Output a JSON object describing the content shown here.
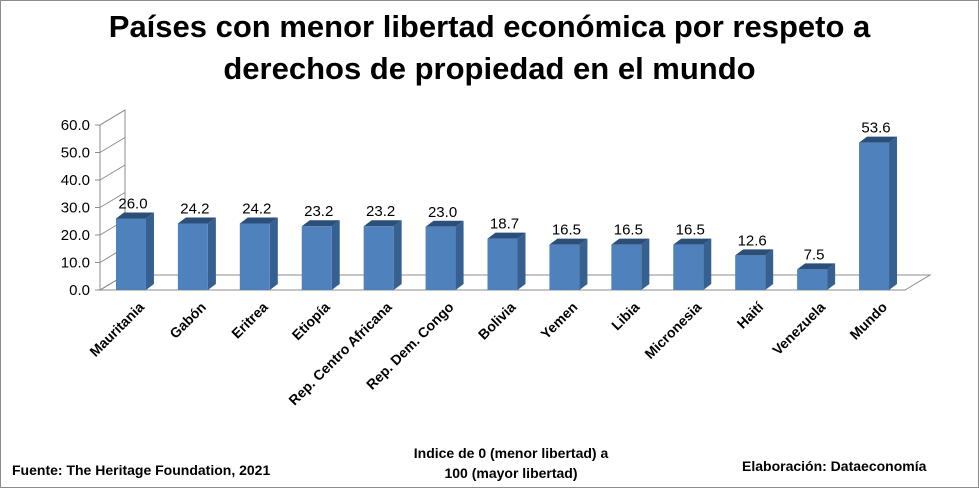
{
  "title_line1": "Países con menor libertad económica por respeto a",
  "title_line2": "derechos de propiedad en el mundo",
  "footer": {
    "source": "Fuente: The Heritage Foundation, 2021",
    "note_line1": "Indice de 0 (menor libertad) a",
    "note_line2": "100  (mayor libertad)",
    "credit": "Elaboración: Dataeconomía"
  },
  "chart_data": {
    "type": "bar",
    "categories": [
      "Mauritania",
      "Gabón",
      "Eritrea",
      "Etiopía",
      "Rep. Centro Africana",
      "Rep. Dem. Congo",
      "Bolivia",
      "Yemen",
      "Libia",
      "Micronesia",
      "Haití",
      "Venezuela",
      "Mundo"
    ],
    "values": [
      26.0,
      24.2,
      24.2,
      23.2,
      23.2,
      23.0,
      18.7,
      16.5,
      16.5,
      16.5,
      12.6,
      7.5,
      53.6
    ],
    "value_labels": [
      "26.0",
      "24.2",
      "24.2",
      "23.2",
      "23.2",
      "23.0",
      "18.7",
      "16.5",
      "16.5",
      "16.5",
      "12.6",
      "7.5",
      "53.6"
    ],
    "yticks": [
      "0.0",
      "10.0",
      "20.0",
      "30.0",
      "40.0",
      "50.0",
      "60.0"
    ],
    "ylim": [
      0,
      60
    ],
    "grid": false,
    "legend": "none",
    "bar_style": "3d",
    "colors": {
      "bar_front": "#4f81bd",
      "bar_side": "#35608f",
      "bar_top": "#2b4f79",
      "axis": "#8c8c8c"
    }
  }
}
